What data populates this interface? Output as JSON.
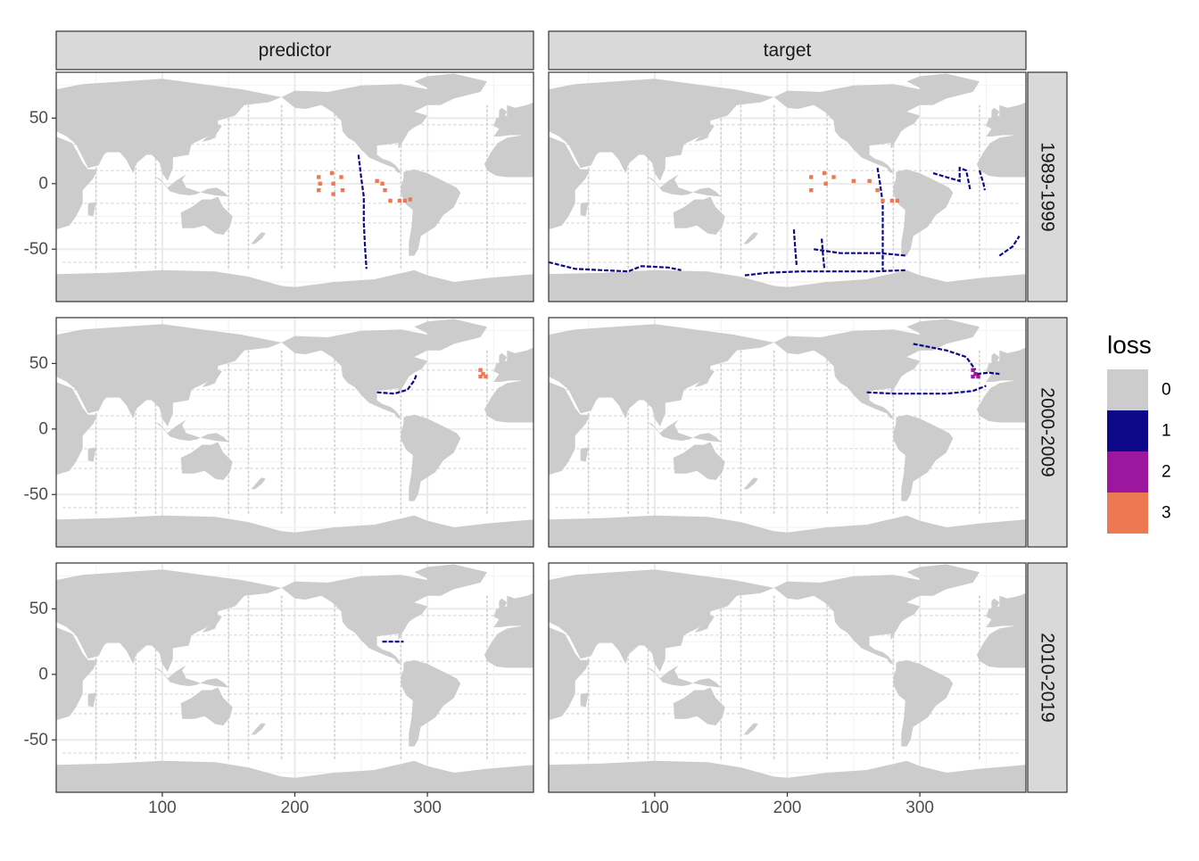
{
  "chart_data": {
    "type": "heatmap",
    "facet_columns": [
      "predictor",
      "target"
    ],
    "facet_rows": [
      "1989-1999",
      "2000-2009",
      "2010-2019"
    ],
    "x_ticks": [
      "100",
      "200",
      "300"
    ],
    "x_tick_values": [
      100,
      200,
      300
    ],
    "y_ticks": [
      "50",
      "0",
      "-50"
    ],
    "y_tick_values": [
      50,
      0,
      -50
    ],
    "xlim": [
      20,
      380
    ],
    "ylim": [
      -90,
      85
    ],
    "xlabel": "",
    "ylabel": "",
    "grid": true,
    "legend": {
      "title": "loss",
      "position": "right",
      "levels": [
        "0",
        "1",
        "2",
        "3"
      ],
      "colors": [
        "#cccccc",
        "#0d0887",
        "#9c179e",
        "#ed7953"
      ]
    },
    "background_color": "#cccccc",
    "panels": [
      {
        "column": "predictor",
        "row": "1989-1999",
        "lines": [
          {
            "level": "1",
            "points": [
              [
                248,
                22
              ],
              [
                250,
                5
              ],
              [
                252,
                -10
              ],
              [
                252,
                -30
              ],
              [
                253,
                -50
              ],
              [
                254,
                -65
              ]
            ]
          }
        ],
        "points": [
          {
            "level": "3",
            "points": [
              [
                218,
                5
              ],
              [
                218,
                -5
              ],
              [
                219,
                0
              ],
              [
                228,
                8
              ],
              [
                229,
                0
              ],
              [
                229,
                -8
              ],
              [
                235,
                5
              ],
              [
                236,
                -5
              ],
              [
                262,
                2
              ],
              [
                266,
                0
              ],
              [
                268,
                -5
              ],
              [
                272,
                -13
              ],
              [
                279,
                -13
              ],
              [
                283,
                -13
              ],
              [
                287,
                -12
              ]
            ]
          }
        ]
      },
      {
        "column": "target",
        "row": "1989-1999",
        "lines": [
          {
            "level": "1",
            "points": [
              [
                20,
                -60
              ],
              [
                40,
                -65
              ],
              [
                60,
                -66
              ],
              [
                80,
                -67
              ],
              [
                90,
                -63
              ],
              [
                110,
                -64
              ],
              [
                120,
                -66
              ]
            ]
          },
          {
            "level": "1",
            "points": [
              [
                168,
                -70
              ],
              [
                185,
                -68
              ],
              [
                210,
                -67
              ],
              [
                240,
                -67
              ],
              [
                265,
                -67
              ],
              [
                290,
                -66
              ]
            ]
          },
          {
            "level": "1",
            "points": [
              [
                268,
                12
              ],
              [
                270,
                0
              ],
              [
                272,
                -15
              ],
              [
                272,
                -40
              ],
              [
                272,
                -66
              ]
            ]
          },
          {
            "level": "1",
            "points": [
              [
                220,
                -50
              ],
              [
                240,
                -53
              ],
              [
                270,
                -53
              ],
              [
                290,
                -55
              ]
            ]
          },
          {
            "level": "1",
            "points": [
              [
                205,
                -35
              ],
              [
                206,
                -50
              ],
              [
                207,
                -62
              ]
            ]
          },
          {
            "level": "1",
            "points": [
              [
                226,
                -42
              ],
              [
                227,
                -55
              ],
              [
                228,
                -65
              ]
            ]
          },
          {
            "level": "1",
            "points": [
              [
                310,
                8
              ],
              [
                320,
                5
              ],
              [
                330,
                2
              ],
              [
                330,
                12
              ],
              [
                335,
                10
              ],
              [
                338,
                -5
              ]
            ]
          },
          {
            "level": "1",
            "points": [
              [
                345,
                10
              ],
              [
                348,
                0
              ],
              [
                349,
                -5
              ]
            ]
          },
          {
            "level": "1",
            "points": [
              [
                360,
                -55
              ],
              [
                370,
                -48
              ],
              [
                375,
                -40
              ]
            ]
          }
        ],
        "points": [
          {
            "level": "3",
            "points": [
              [
                218,
                5
              ],
              [
                218,
                -5
              ],
              [
                228,
                8
              ],
              [
                229,
                0
              ],
              [
                235,
                5
              ],
              [
                250,
                2
              ],
              [
                262,
                2
              ],
              [
                268,
                -5
              ],
              [
                272,
                -13
              ],
              [
                279,
                -13
              ],
              [
                283,
                -13
              ]
            ]
          }
        ]
      },
      {
        "column": "predictor",
        "row": "2000-2009",
        "lines": [
          {
            "level": "1",
            "points": [
              [
                262,
                28
              ],
              [
                275,
                27
              ],
              [
                285,
                30
              ],
              [
                290,
                37
              ],
              [
                292,
                42
              ]
            ]
          }
        ],
        "points": [
          {
            "level": "3",
            "points": [
              [
                340,
                45
              ],
              [
                342,
                42
              ],
              [
                344,
                40
              ],
              [
                340,
                40
              ]
            ]
          }
        ]
      },
      {
        "column": "target",
        "row": "2000-2009",
        "lines": [
          {
            "level": "1",
            "points": [
              [
                260,
                28
              ],
              [
                280,
                27
              ],
              [
                300,
                27
              ],
              [
                320,
                27
              ],
              [
                340,
                29
              ],
              [
                350,
                33
              ]
            ]
          },
          {
            "level": "1",
            "points": [
              [
                295,
                65
              ],
              [
                320,
                60
              ],
              [
                335,
                55
              ],
              [
                342,
                45
              ]
            ]
          },
          {
            "level": "1",
            "points": [
              [
                343,
                42
              ],
              [
                352,
                43
              ],
              [
                360,
                42
              ]
            ]
          }
        ],
        "points": [
          {
            "level": "2",
            "points": [
              [
                340,
                45
              ],
              [
                342,
                42
              ],
              [
                344,
                40
              ],
              [
                340,
                40
              ]
            ]
          }
        ]
      },
      {
        "column": "predictor",
        "row": "2010-2019",
        "lines": [
          {
            "level": "1",
            "points": [
              [
                266,
                25
              ],
              [
                275,
                25
              ],
              [
                282,
                25
              ]
            ]
          }
        ],
        "points": []
      },
      {
        "column": "target",
        "row": "2010-2019",
        "lines": [],
        "points": []
      }
    ]
  }
}
